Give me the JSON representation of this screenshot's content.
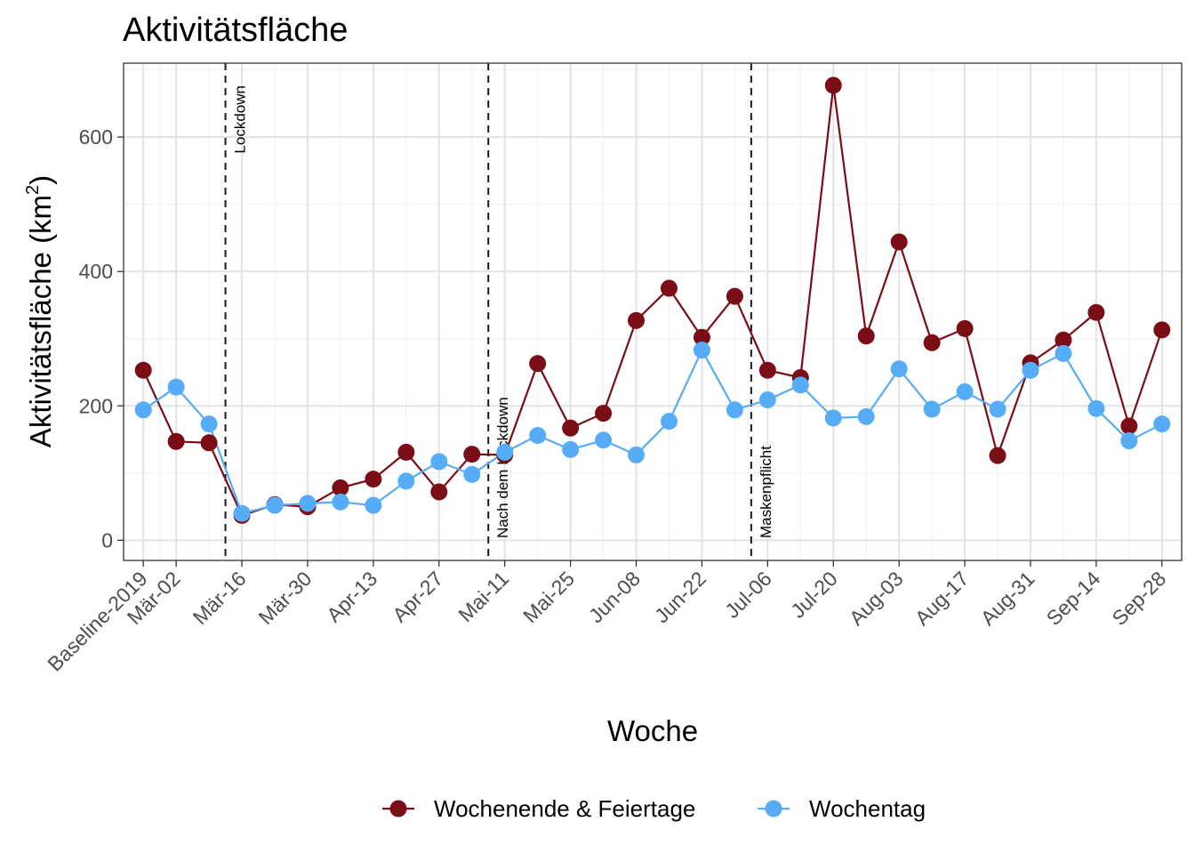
{
  "chart_data": {
    "type": "line",
    "title": "Aktivitätsfläche",
    "xlabel": "Woche",
    "ylabel": "Aktivitätsfläche (km",
    "ylabel_sup": "2",
    "ylabel_close": ")",
    "ylim": [
      -30,
      710
    ],
    "yticks": [
      0,
      200,
      400,
      600
    ],
    "grid": true,
    "legend_position": "bottom",
    "tick_labels": [
      "Baseline-2019",
      "Mär-02",
      "Mär-16",
      "Mär-30",
      "Apr-13",
      "Apr-27",
      "Mai-11",
      "Mai-25",
      "Jun-08",
      "Jun-22",
      "Jul-06",
      "Jul-20",
      "Aug-03",
      "Aug-17",
      "Aug-31",
      "Sep-14",
      "Sep-28"
    ],
    "tick_positions": [
      0,
      1,
      3,
      5,
      7,
      9,
      11,
      13,
      15,
      17,
      19,
      21,
      23,
      25,
      27,
      29,
      31
    ],
    "x_range": [
      -0.6,
      31.6
    ],
    "vlines": [
      {
        "x": 2.5,
        "label": "Lockdown"
      },
      {
        "x": 10.5,
        "label": "Nach dem Lockdown"
      },
      {
        "x": 18.5,
        "label": "Maskenpflicht"
      }
    ],
    "series": [
      {
        "name": "Wochenende & Feiertage",
        "color": "#7b0d17",
        "values": [
          253,
          147,
          145,
          37,
          53,
          50,
          78,
          91,
          131,
          72,
          128,
          127,
          263,
          167,
          189,
          327,
          375,
          302,
          363,
          253,
          242,
          677,
          304,
          444,
          294,
          315,
          126,
          264,
          298,
          339,
          170,
          313
        ]
      },
      {
        "name": "Wochentag",
        "color": "#56acf7",
        "values": [
          194,
          228,
          173,
          40,
          52,
          55,
          57,
          52,
          88,
          117,
          98,
          131,
          156,
          135,
          149,
          127,
          177,
          283,
          194,
          209,
          231,
          182,
          184,
          255,
          195,
          221,
          195,
          253,
          278,
          196,
          148,
          173
        ]
      }
    ]
  }
}
